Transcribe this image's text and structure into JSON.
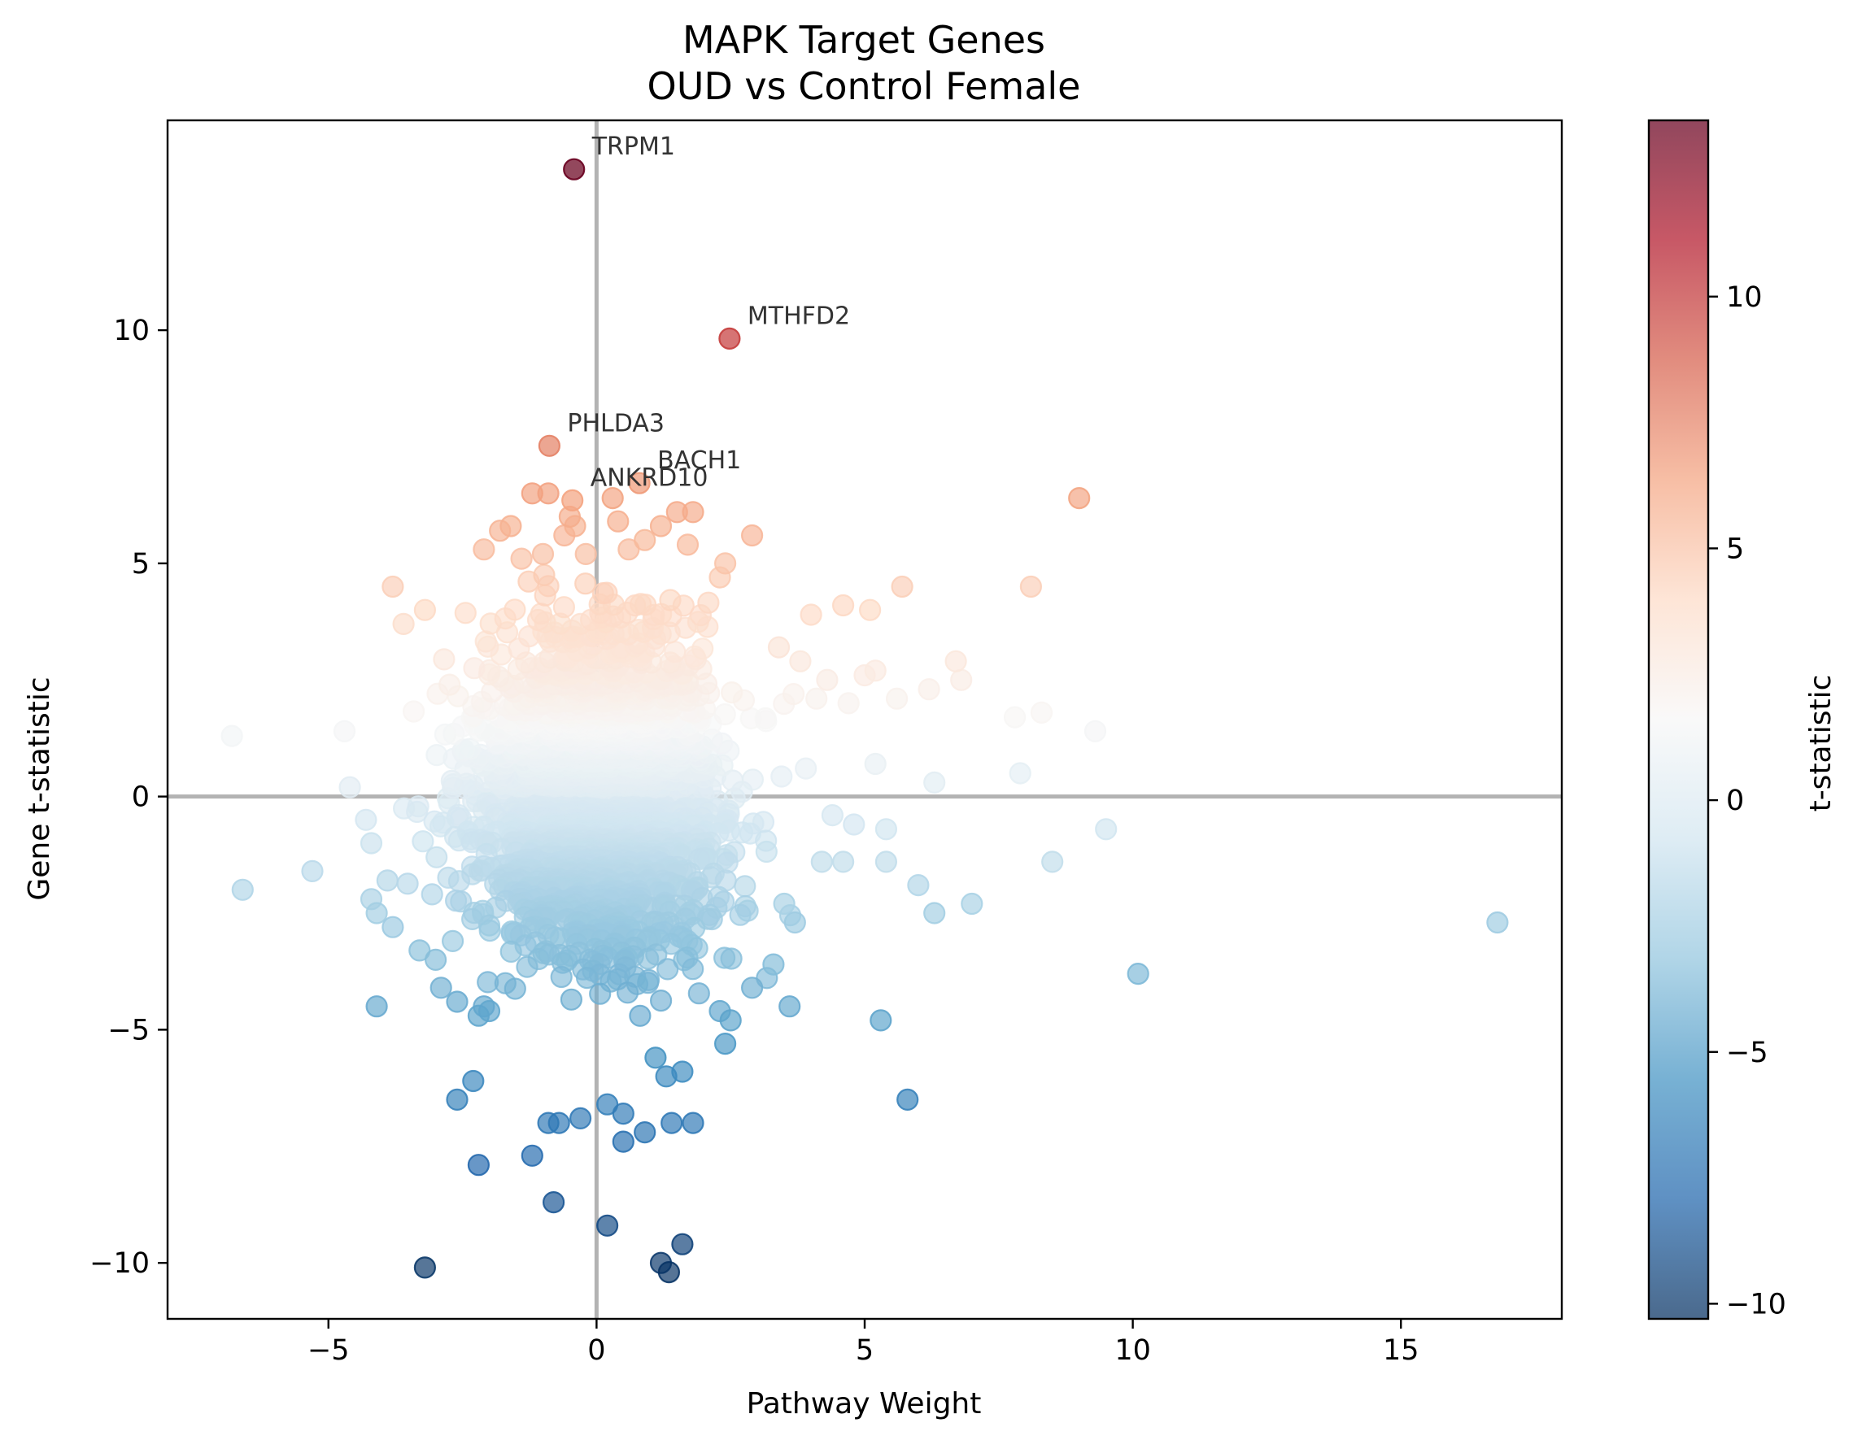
{
  "chart_data": {
    "type": "scatter",
    "title": "MAPK Target Genes",
    "subtitle": "OUD vs Control Female",
    "xlabel": "Pathway Weight",
    "ylabel": "Gene t-statistic",
    "xlim": [
      -8.0,
      18.0
    ],
    "ylim": [
      -11.2,
      14.5
    ],
    "xticks": [
      -5,
      0,
      5,
      10,
      15
    ],
    "yticks": [
      -10,
      -5,
      0,
      5,
      10
    ],
    "reference_lines": {
      "x": 0,
      "y": 0
    },
    "grid": false,
    "colorbar": {
      "label": "t-statistic",
      "colormap": "RdBu_r",
      "range": [
        -10.3,
        13.5
      ],
      "ticks": [
        -10,
        -5,
        0,
        5,
        10
      ],
      "colors": [
        "#053061",
        "#2166ac",
        "#4393c3",
        "#92c5de",
        "#d1e5f0",
        "#f7f7f7",
        "#fddbc7",
        "#f4a582",
        "#d6604d",
        "#b2182b",
        "#67001f"
      ]
    },
    "labeled_points": [
      {
        "label": "TRPM1",
        "x": -0.42,
        "y": 13.45
      },
      {
        "label": "MTHFD2",
        "x": 2.48,
        "y": 9.82
      },
      {
        "label": "PHLDA3",
        "x": -0.88,
        "y": 7.52
      },
      {
        "label": "BACH1",
        "x": 0.8,
        "y": 6.72
      },
      {
        "label": "ANKRD10",
        "x": -0.45,
        "y": 6.35
      }
    ],
    "points": [
      [
        -6.8,
        1.3
      ],
      [
        -6.6,
        -2.0
      ],
      [
        -5.3,
        -1.6
      ],
      [
        -4.7,
        1.4
      ],
      [
        -4.6,
        0.2
      ],
      [
        -4.3,
        -0.5
      ],
      [
        -4.2,
        -1.0
      ],
      [
        -4.2,
        -2.2
      ],
      [
        -4.1,
        -2.5
      ],
      [
        -4.1,
        -4.5
      ],
      [
        -3.9,
        -1.8
      ],
      [
        -3.8,
        -2.8
      ],
      [
        -3.8,
        4.5
      ],
      [
        -3.6,
        3.7
      ],
      [
        -3.3,
        -3.3
      ],
      [
        -3.2,
        -10.1
      ],
      [
        -3.2,
        4.0
      ],
      [
        -3.0,
        -3.5
      ],
      [
        -2.9,
        -4.1
      ],
      [
        -2.6,
        -4.4
      ],
      [
        -2.6,
        -6.5
      ],
      [
        -2.3,
        -6.1
      ],
      [
        -2.2,
        -7.9
      ],
      [
        -2.2,
        -4.7
      ],
      [
        -2.1,
        -4.5
      ],
      [
        -2.1,
        5.3
      ],
      [
        -2.0,
        -4.6
      ],
      [
        -1.8,
        5.7
      ],
      [
        -1.6,
        5.8
      ],
      [
        -1.4,
        5.1
      ],
      [
        -1.2,
        -7.7
      ],
      [
        -1.2,
        6.5
      ],
      [
        -1.0,
        5.2
      ],
      [
        -0.9,
        6.5
      ],
      [
        -0.9,
        -7.0
      ],
      [
        -0.8,
        -8.7
      ],
      [
        -0.7,
        -7.0
      ],
      [
        -0.6,
        5.6
      ],
      [
        -0.5,
        6.0
      ],
      [
        -0.4,
        5.8
      ],
      [
        -0.3,
        -6.9
      ],
      [
        -0.2,
        5.2
      ],
      [
        0.2,
        -9.2
      ],
      [
        0.2,
        -6.6
      ],
      [
        0.3,
        6.4
      ],
      [
        0.4,
        5.9
      ],
      [
        0.5,
        -7.4
      ],
      [
        0.5,
        -6.8
      ],
      [
        0.6,
        5.3
      ],
      [
        0.9,
        -7.2
      ],
      [
        0.9,
        5.5
      ],
      [
        1.1,
        -5.6
      ],
      [
        1.2,
        5.8
      ],
      [
        1.2,
        -10.0
      ],
      [
        1.3,
        -6.0
      ],
      [
        1.35,
        -10.2
      ],
      [
        1.4,
        -7.0
      ],
      [
        1.5,
        6.1
      ],
      [
        1.6,
        -9.6
      ],
      [
        1.6,
        -5.9
      ],
      [
        1.7,
        5.4
      ],
      [
        1.8,
        6.1
      ],
      [
        1.8,
        -7.0
      ],
      [
        2.3,
        -4.6
      ],
      [
        2.3,
        4.7
      ],
      [
        2.4,
        5.0
      ],
      [
        2.4,
        -5.3
      ],
      [
        2.5,
        -4.8
      ],
      [
        2.9,
        5.6
      ],
      [
        2.9,
        -4.1
      ],
      [
        3.3,
        -3.6
      ],
      [
        3.4,
        3.2
      ],
      [
        3.5,
        -2.3
      ],
      [
        3.6,
        -4.5
      ],
      [
        3.7,
        -2.7
      ],
      [
        3.8,
        2.9
      ],
      [
        4.0,
        3.9
      ],
      [
        4.1,
        2.1
      ],
      [
        4.2,
        -1.4
      ],
      [
        4.3,
        2.5
      ],
      [
        4.4,
        -0.4
      ],
      [
        4.6,
        4.1
      ],
      [
        4.6,
        -1.4
      ],
      [
        4.7,
        2.0
      ],
      [
        4.8,
        -0.6
      ],
      [
        5.0,
        2.6
      ],
      [
        5.1,
        4.0
      ],
      [
        5.2,
        2.7
      ],
      [
        5.2,
        0.7
      ],
      [
        5.3,
        -4.8
      ],
      [
        5.4,
        -1.4
      ],
      [
        5.4,
        -0.7
      ],
      [
        5.6,
        2.1
      ],
      [
        5.7,
        4.5
      ],
      [
        5.8,
        -6.5
      ],
      [
        6.0,
        -1.9
      ],
      [
        6.2,
        2.3
      ],
      [
        6.3,
        -2.5
      ],
      [
        6.3,
        0.3
      ],
      [
        6.7,
        2.9
      ],
      [
        6.8,
        2.5
      ],
      [
        7.0,
        -2.3
      ],
      [
        7.8,
        1.7
      ],
      [
        7.9,
        0.5
      ],
      [
        8.1,
        4.5
      ],
      [
        8.3,
        1.8
      ],
      [
        8.5,
        -1.4
      ],
      [
        9.0,
        6.4
      ],
      [
        9.3,
        1.4
      ],
      [
        9.5,
        -0.7
      ],
      [
        10.1,
        -3.8
      ],
      [
        16.8,
        -2.7
      ]
    ]
  }
}
